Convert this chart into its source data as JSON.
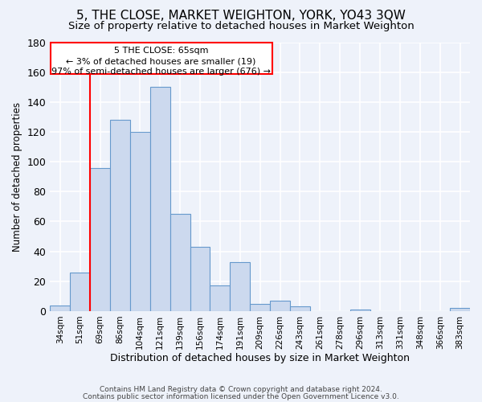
{
  "title": "5, THE CLOSE, MARKET WEIGHTON, YORK, YO43 3QW",
  "subtitle": "Size of property relative to detached houses in Market Weighton",
  "xlabel": "Distribution of detached houses by size in Market Weighton",
  "ylabel": "Number of detached properties",
  "bar_labels": [
    "34sqm",
    "51sqm",
    "69sqm",
    "86sqm",
    "104sqm",
    "121sqm",
    "139sqm",
    "156sqm",
    "174sqm",
    "191sqm",
    "209sqm",
    "226sqm",
    "243sqm",
    "261sqm",
    "278sqm",
    "296sqm",
    "313sqm",
    "331sqm",
    "348sqm",
    "366sqm",
    "383sqm"
  ],
  "bar_values": [
    4,
    26,
    96,
    128,
    120,
    150,
    65,
    43,
    17,
    33,
    5,
    7,
    3,
    0,
    0,
    1,
    0,
    0,
    0,
    0,
    2
  ],
  "bar_color": "#ccd9ee",
  "bar_edge_color": "#6699cc",
  "ylim": [
    0,
    180
  ],
  "yticks": [
    0,
    20,
    40,
    60,
    80,
    100,
    120,
    140,
    160,
    180
  ],
  "red_line_x": 2,
  "annotation_title": "5 THE CLOSE: 65sqm",
  "annotation_line1": "← 3% of detached houses are smaller (19)",
  "annotation_line2": "97% of semi-detached houses are larger (676) →",
  "footer1": "Contains HM Land Registry data © Crown copyright and database right 2024.",
  "footer2": "Contains public sector information licensed under the Open Government Licence v3.0.",
  "background_color": "#eef2fa",
  "grid_color": "#ffffff",
  "title_fontsize": 11,
  "subtitle_fontsize": 9.5
}
